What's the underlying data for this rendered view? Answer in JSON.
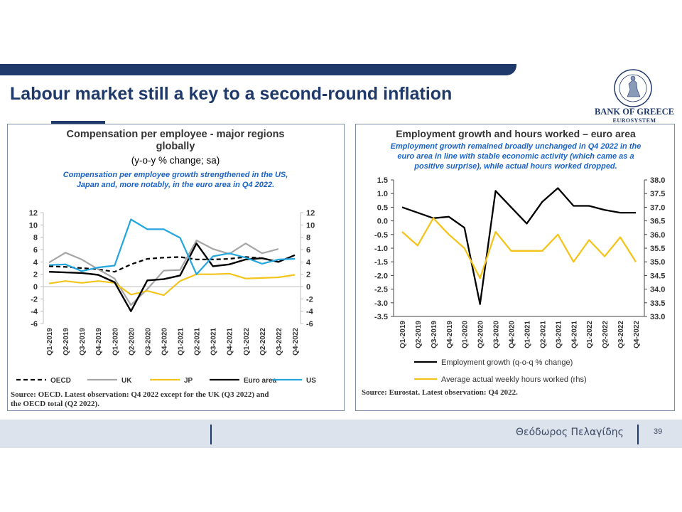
{
  "slide": {
    "title": "Labour market still a key to a second-round inflation",
    "logo_name": "BANK OF GREECE",
    "logo_sub": "EUROSYSTEM",
    "logo_seal_text": "ΤΡΑΠΕΖΑ ΤΗΣ ΕΛΛΑΔΟΣ",
    "logo_seal_year": "1928",
    "author": "Θεόδωρος Πελαγίδης",
    "page_number": "39",
    "accent_color": "#1f3a6a"
  },
  "chart_data": [
    {
      "type": "line",
      "title": "Compensation per employee - major regions globally",
      "subtitle": "(y-o-y % change; sa)",
      "annotation": "Compensation per employee growth strengthened in the US, Japan and, more notably, in the euro area in Q4 2022.",
      "source": "Source: OECD. Latest observation: Q4 2022 except for the UK (Q3 2022) and the OECD total (Q2 2022).",
      "categories": [
        "Q1-2019",
        "Q2-2019",
        "Q3-2019",
        "Q4-2019",
        "Q1-2020",
        "Q2-2020",
        "Q3-2020",
        "Q4-2020",
        "Q1-2021",
        "Q2-2021",
        "Q3-2021",
        "Q4-2021",
        "Q1-2022",
        "Q2-2022",
        "Q3-2022",
        "Q4-2022"
      ],
      "xlabel": "",
      "ylabel": "",
      "ylim": [
        -6,
        12
      ],
      "yticks": [
        -6,
        -4,
        -2,
        0,
        2,
        4,
        6,
        8,
        10,
        12
      ],
      "grid": false,
      "dual_axis_labels": true,
      "legend_position": "bottom",
      "series": [
        {
          "name": "OECD",
          "color": "#000000",
          "dash": "dashed",
          "values": [
            3.3,
            3.2,
            3.0,
            2.8,
            2.4,
            3.6,
            4.5,
            4.7,
            4.8,
            4.4,
            4.4,
            4.5,
            4.8,
            4.6,
            null,
            null
          ]
        },
        {
          "name": "UK",
          "color": "#a6a6a6",
          "dash": "solid",
          "values": [
            3.9,
            5.5,
            4.4,
            2.8,
            1.3,
            -3.0,
            -0.4,
            2.6,
            2.7,
            7.5,
            6.1,
            5.3,
            7.0,
            5.4,
            6.1,
            null
          ]
        },
        {
          "name": "JP",
          "color": "#f2c41c",
          "dash": "solid",
          "values": [
            0.5,
            0.9,
            0.6,
            0.9,
            0.6,
            -1.3,
            -0.7,
            -1.4,
            0.9,
            2.0,
            2.0,
            2.1,
            1.3,
            1.4,
            1.5,
            1.9
          ]
        },
        {
          "name": "Euro area",
          "color": "#000000",
          "dash": "solid",
          "values": [
            2.4,
            2.3,
            2.2,
            1.9,
            0.7,
            -4.0,
            1.0,
            1.2,
            1.8,
            7.0,
            3.3,
            3.6,
            4.4,
            4.6,
            4.0,
            5.1
          ]
        },
        {
          "name": "US",
          "color": "#23a6de",
          "dash": "solid",
          "values": [
            3.5,
            3.6,
            2.5,
            3.1,
            3.4,
            10.9,
            9.3,
            9.3,
            7.9,
            2.0,
            4.9,
            5.4,
            4.7,
            3.7,
            4.4,
            4.5
          ]
        }
      ]
    },
    {
      "type": "line",
      "title": "Employment growth and hours worked – euro area",
      "annotation": "Employment growth remained broadly unchanged in Q4 2022 in the euro area in line with stable economic activity (which came as a positive surprise), while actual hours worked dropped.",
      "source": "Source: Eurostat. Latest observation: Q4 2022.",
      "categories": [
        "Q1-2019",
        "Q2-2019",
        "Q3-2019",
        "Q4-2019",
        "Q1-2020",
        "Q2-2020",
        "Q3-2020",
        "Q4-2020",
        "Q1-2021",
        "Q2-2021",
        "Q3-2021",
        "Q4-2021",
        "Q1-2022",
        "Q2-2022",
        "Q3-2022",
        "Q4-2022"
      ],
      "xlabel": "",
      "ylim": [
        -3.5,
        1.5
      ],
      "yticks": [
        -3.5,
        -3.0,
        -2.5,
        -2.0,
        -1.5,
        -1.0,
        -0.5,
        0.0,
        0.5,
        1.0,
        1.5
      ],
      "y2lim": [
        33.0,
        38.0
      ],
      "y2ticks": [
        33.0,
        33.5,
        34.0,
        34.5,
        35.0,
        35.5,
        36.0,
        36.5,
        37.0,
        37.5,
        38.0
      ],
      "grid": false,
      "legend_position": "bottom",
      "series": [
        {
          "name": "Employment growth (q-o-q % change)",
          "axis": "left",
          "color": "#000000",
          "values": [
            0.5,
            0.3,
            0.1,
            0.15,
            -0.25,
            -3.05,
            1.1,
            0.5,
            -0.1,
            0.7,
            1.2,
            0.55,
            0.55,
            0.4,
            0.3,
            0.3
          ]
        },
        {
          "name": "Average actual weekly hours worked (rhs)",
          "axis": "right",
          "color": "#f2c41c",
          "values": [
            36.1,
            35.6,
            36.6,
            36.0,
            35.5,
            34.4,
            36.1,
            35.4,
            35.4,
            35.4,
            36.0,
            35.0,
            35.8,
            35.2,
            35.9,
            35.0
          ]
        }
      ]
    }
  ]
}
